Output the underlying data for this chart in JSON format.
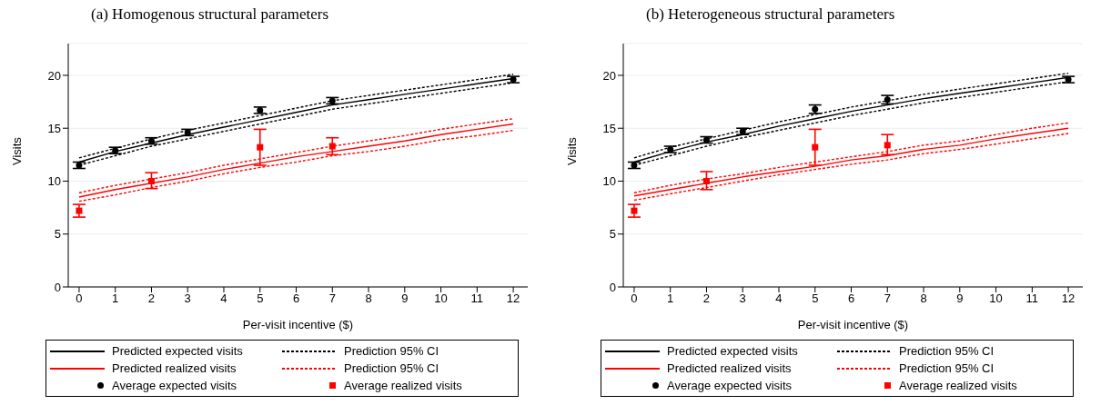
{
  "chart_data": [
    {
      "type": "line",
      "title": "(a) Homogenous structural parameters",
      "xlabel": "Per-visit incentive ($)",
      "ylabel": "Visits",
      "xlim": [
        -0.3,
        12.4
      ],
      "xticks": [
        0,
        1,
        2,
        3,
        4,
        5,
        6,
        7,
        8,
        9,
        10,
        11,
        12
      ],
      "ylim": [
        0,
        23
      ],
      "yticks": [
        0,
        5,
        10,
        15,
        20
      ],
      "grid": "y",
      "legend": "bottom",
      "x": [
        0,
        1,
        2,
        3,
        4,
        5,
        6,
        7,
        8,
        9,
        10,
        11,
        12
      ],
      "series": [
        {
          "name": "Predicted expected visits",
          "color": "#000000",
          "line_style": "solid",
          "marker": "none",
          "values": [
            11.8,
            12.8,
            13.6,
            14.4,
            15.1,
            15.8,
            16.5,
            17.2,
            17.7,
            18.2,
            18.7,
            19.2,
            19.7
          ]
        },
        {
          "name": "Prediction 95% CI",
          "color": "#000000",
          "line_style": "dashed",
          "marker": "none",
          "values": [
            12.2,
            13.1,
            14.0,
            14.8,
            15.5,
            16.2,
            16.9,
            17.6,
            18.1,
            18.6,
            19.1,
            19.6,
            20.1
          ]
        },
        {
          "color": "#000000",
          "line_style": "dashed",
          "marker": "none",
          "values": [
            11.5,
            12.4,
            13.3,
            14.0,
            14.7,
            15.4,
            16.1,
            16.8,
            17.3,
            17.8,
            18.3,
            18.8,
            19.3
          ]
        },
        {
          "name": "Predicted realized visits",
          "color": "#ff0000",
          "line_style": "solid",
          "marker": "none",
          "values": [
            8.5,
            9.2,
            9.8,
            10.4,
            11.1,
            11.7,
            12.3,
            12.8,
            13.3,
            13.8,
            14.4,
            14.9,
            15.4
          ]
        },
        {
          "name": "Prediction 95% CI",
          "color": "#ff0000",
          "line_style": "dashed",
          "marker": "none",
          "values": [
            8.9,
            9.6,
            10.2,
            10.8,
            11.5,
            12.1,
            12.7,
            13.3,
            13.8,
            14.3,
            14.9,
            15.4,
            15.9
          ]
        },
        {
          "color": "#ff0000",
          "line_style": "dashed",
          "marker": "none",
          "values": [
            8.1,
            8.7,
            9.4,
            10.0,
            10.7,
            11.3,
            11.8,
            12.4,
            12.8,
            13.3,
            13.9,
            14.3,
            14.8
          ]
        },
        {
          "name": "Average expected visits",
          "type": "scatter",
          "color": "#000000",
          "marker": "circle",
          "x": [
            0,
            1,
            2,
            3,
            5,
            7,
            12
          ],
          "values": [
            11.5,
            12.9,
            13.8,
            14.6,
            16.7,
            17.6,
            19.6
          ],
          "errors": [
            0.3,
            0.3,
            0.3,
            0.3,
            0.3,
            0.3,
            0.3
          ]
        },
        {
          "name": "Average realized visits",
          "type": "scatter",
          "color": "#ff0000",
          "marker": "square",
          "x": [
            0,
            2,
            5,
            7
          ],
          "values": [
            7.2,
            10.0,
            13.2,
            13.3
          ],
          "errors": [
            [
              6.6,
              7.8
            ],
            [
              9.3,
              10.8
            ],
            [
              11.5,
              14.9
            ],
            [
              12.5,
              14.1
            ]
          ]
        }
      ]
    },
    {
      "type": "line",
      "title": "(b) Heterogeneous structural parameters",
      "xlabel": "Per-visit incentive ($)",
      "ylabel": "Visits",
      "xlim": [
        -0.3,
        12.4
      ],
      "xticks": [
        0,
        1,
        2,
        3,
        4,
        5,
        6,
        7,
        8,
        9,
        10,
        11,
        12
      ],
      "ylim": [
        0,
        23
      ],
      "yticks": [
        0,
        5,
        10,
        15,
        20
      ],
      "grid": "y",
      "legend": "bottom",
      "x": [
        0,
        1,
        2,
        3,
        4,
        5,
        6,
        7,
        8,
        9,
        10,
        11,
        12
      ],
      "series": [
        {
          "name": "Predicted expected visits",
          "color": "#000000",
          "line_style": "solid",
          "marker": "none",
          "values": [
            11.8,
            12.8,
            13.7,
            14.4,
            15.2,
            15.9,
            16.6,
            17.2,
            17.8,
            18.3,
            18.8,
            19.3,
            19.8
          ]
        },
        {
          "name": "Prediction 95% CI",
          "color": "#000000",
          "line_style": "dashed",
          "marker": "none",
          "values": [
            12.2,
            13.2,
            14.0,
            14.8,
            15.6,
            16.3,
            17.0,
            17.6,
            18.2,
            18.7,
            19.2,
            19.7,
            20.2
          ]
        },
        {
          "color": "#000000",
          "line_style": "dashed",
          "marker": "none",
          "values": [
            11.5,
            12.4,
            13.3,
            14.1,
            14.8,
            15.5,
            16.2,
            16.8,
            17.4,
            17.9,
            18.4,
            18.9,
            19.4
          ]
        },
        {
          "name": "Predicted realized visits",
          "color": "#ff0000",
          "line_style": "solid",
          "marker": "none",
          "values": [
            8.6,
            9.2,
            9.8,
            10.4,
            10.9,
            11.4,
            12.0,
            12.4,
            13.0,
            13.4,
            14.0,
            14.5,
            15.0
          ]
        },
        {
          "name": "Prediction 95% CI",
          "color": "#ff0000",
          "line_style": "dashed",
          "marker": "none",
          "values": [
            8.9,
            9.6,
            10.2,
            10.7,
            11.3,
            11.8,
            12.3,
            12.8,
            13.4,
            13.8,
            14.4,
            15.0,
            15.5
          ]
        },
        {
          "color": "#ff0000",
          "line_style": "dashed",
          "marker": "none",
          "values": [
            8.2,
            8.8,
            9.4,
            10.0,
            10.6,
            11.1,
            11.6,
            12.0,
            12.6,
            13.0,
            13.5,
            14.0,
            14.5
          ]
        },
        {
          "name": "Average expected visits",
          "type": "scatter",
          "color": "#000000",
          "marker": "circle",
          "x": [
            0,
            1,
            2,
            3,
            5,
            7,
            12
          ],
          "values": [
            11.5,
            13.0,
            13.9,
            14.7,
            16.8,
            17.7,
            19.6
          ],
          "errors": [
            0.3,
            0.3,
            0.3,
            0.3,
            0.4,
            0.4,
            0.3
          ]
        },
        {
          "name": "Average realized visits",
          "type": "scatter",
          "color": "#ff0000",
          "marker": "square",
          "x": [
            0,
            2,
            5,
            7
          ],
          "values": [
            7.2,
            10.0,
            13.2,
            13.4
          ],
          "errors": [
            [
              6.6,
              7.8
            ],
            [
              9.2,
              10.9
            ],
            [
              11.5,
              14.9
            ],
            [
              12.5,
              14.4
            ]
          ]
        }
      ]
    }
  ]
}
